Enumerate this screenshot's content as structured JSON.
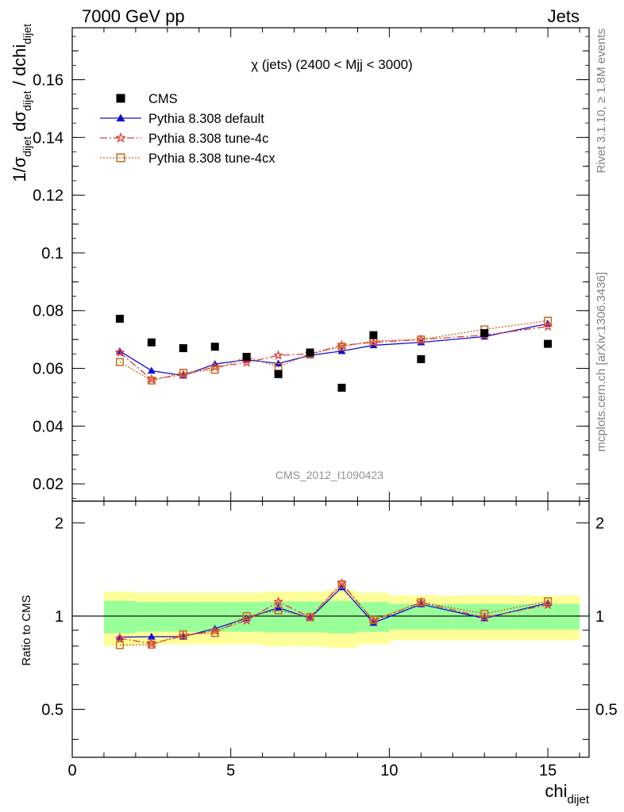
{
  "header": {
    "left": "7000 GeV pp",
    "right": "Jets"
  },
  "side_labels": {
    "rivet": "Rivet 3.1.10, ≥ 1.8M events",
    "mcplots": "mcplots.cern.ch [arXiv:1306.3436]"
  },
  "chart_data": {
    "type": "scatter",
    "title": "χ (jets) (2400 < Mjj < 3000)",
    "watermark": "CMS_2012_I1090423",
    "xlabel": "chi",
    "xlabel_sub": "dijet",
    "ylabel": "1/σdijet dσdijet / dchidijet",
    "ratio_ylabel": "Ratio to CMS",
    "xlim": [
      0,
      16.3
    ],
    "ylim": [
      0.014,
      0.178
    ],
    "ratio_ylim": [
      0.35,
      2.35
    ],
    "ratio_log": true,
    "x_ticks": [
      "0",
      "5",
      "10",
      "15"
    ],
    "y_ticks": [
      "0.02",
      "0.04",
      "0.06",
      "0.08",
      "0.1",
      "0.12",
      "0.14",
      "0.16"
    ],
    "ratio_ticks": [
      "0.5",
      "1",
      "2"
    ],
    "bins": [
      [
        1,
        2
      ],
      [
        2,
        3
      ],
      [
        3,
        4
      ],
      [
        4,
        5
      ],
      [
        5,
        6
      ],
      [
        6,
        7
      ],
      [
        7,
        8
      ],
      [
        8,
        9
      ],
      [
        9,
        10
      ],
      [
        10,
        12
      ],
      [
        12,
        14
      ],
      [
        14,
        16
      ]
    ],
    "data": {
      "name": "CMS",
      "x": [
        1.5,
        2.5,
        3.5,
        4.5,
        5.5,
        6.5,
        7.5,
        8.5,
        9.5,
        11,
        13,
        15
      ],
      "y": [
        0.0772,
        0.069,
        0.067,
        0.0675,
        0.064,
        0.058,
        0.0655,
        0.0533,
        0.0715,
        0.0632,
        0.0722,
        0.0685
      ]
    },
    "bands": {
      "green_half": [
        0.12,
        0.11,
        0.11,
        0.11,
        0.11,
        0.115,
        0.115,
        0.12,
        0.11,
        0.095,
        0.095,
        0.095
      ],
      "yellow_half": [
        0.2,
        0.19,
        0.19,
        0.19,
        0.19,
        0.2,
        0.2,
        0.21,
        0.19,
        0.165,
        0.165,
        0.165
      ]
    },
    "series": [
      {
        "name": "Pythia 8.308 default",
        "color": "#1010d8",
        "marker": "triangle",
        "dash": "",
        "y": [
          0.066,
          0.0592,
          0.0575,
          0.0615,
          0.063,
          0.0617,
          0.0645,
          0.066,
          0.068,
          0.069,
          0.071,
          0.0755
        ]
      },
      {
        "name": "Pythia 8.308 tune-4c",
        "color": "#e03c3c",
        "marker": "star",
        "dash": "9,3,2,3",
        "y": [
          0.0655,
          0.0562,
          0.0578,
          0.0605,
          0.062,
          0.0645,
          0.065,
          0.068,
          0.069,
          0.07,
          0.0715,
          0.0745
        ]
      },
      {
        "name": "Pythia 8.308 tune-4cx",
        "color": "#c8681e",
        "marker": "open-square",
        "dash": "2,2",
        "y": [
          0.0622,
          0.0558,
          0.0585,
          0.0595,
          0.064,
          0.0605,
          0.065,
          0.0675,
          0.0695,
          0.07,
          0.0735,
          0.0765
        ]
      }
    ]
  }
}
